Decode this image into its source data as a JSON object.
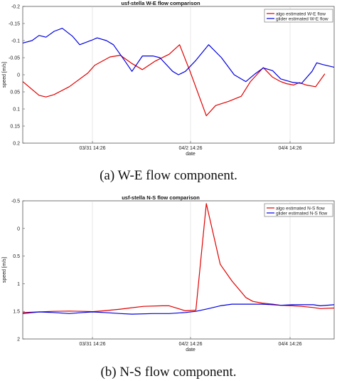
{
  "chart_data": [
    {
      "type": "line",
      "title": "usf-stella W-E flow comparison",
      "xlabel": "date",
      "ylabel": "speed [m/s]",
      "x_tick_labels": [
        "03/31 14:26",
        "04/2 14:26",
        "04/4 14:26"
      ],
      "y_tick_labels": [
        "-0.2",
        "-0.15",
        "-0.1",
        "-0.05",
        "0",
        "0.05",
        "0.1",
        "0.15",
        "0.2"
      ],
      "ylim": [
        -0.2,
        0.2
      ],
      "legend_position": "top-right",
      "grid": false,
      "series": [
        {
          "name": "algo estimated W-E flow",
          "color": "#e00000",
          "points": [
            [
              0.0,
              -0.02
            ],
            [
              0.07,
              -0.06
            ],
            [
              0.1,
              -0.065
            ],
            [
              0.135,
              -0.058
            ],
            [
              0.2,
              -0.035
            ],
            [
              0.28,
              0.005
            ],
            [
              0.31,
              0.028
            ],
            [
              0.375,
              0.052
            ],
            [
              0.42,
              0.057
            ],
            [
              0.47,
              0.033
            ],
            [
              0.515,
              0.015
            ],
            [
              0.57,
              0.04
            ],
            [
              0.63,
              0.06
            ],
            [
              0.675,
              0.088
            ],
            [
              0.72,
              0.01
            ],
            [
              0.79,
              -0.12
            ],
            [
              0.83,
              -0.09
            ],
            [
              0.885,
              -0.078
            ],
            [
              0.94,
              -0.063
            ],
            [
              0.98,
              -0.02
            ],
            [
              1.035,
              0.021
            ],
            [
              1.075,
              -0.007
            ],
            [
              1.11,
              -0.02
            ],
            [
              1.135,
              -0.026
            ],
            [
              1.165,
              -0.03
            ],
            [
              1.19,
              -0.023
            ],
            [
              1.22,
              -0.03
            ],
            [
              1.26,
              -0.035
            ],
            [
              1.3,
              0.003
            ]
          ]
        },
        {
          "name": "glider estimated W-E flow",
          "color": "#0000e0",
          "points": [
            [
              0.0,
              0.093
            ],
            [
              0.04,
              0.1
            ],
            [
              0.07,
              0.115
            ],
            [
              0.1,
              0.11
            ],
            [
              0.135,
              0.127
            ],
            [
              0.17,
              0.136
            ],
            [
              0.215,
              0.112
            ],
            [
              0.245,
              0.088
            ],
            [
              0.3,
              0.102
            ],
            [
              0.32,
              0.108
            ],
            [
              0.36,
              0.1
            ],
            [
              0.39,
              0.088
            ],
            [
              0.44,
              0.04
            ],
            [
              0.47,
              0.01
            ],
            [
              0.515,
              0.055
            ],
            [
              0.56,
              0.055
            ],
            [
              0.59,
              0.05
            ],
            [
              0.645,
              0.01
            ],
            [
              0.67,
              0.0
            ],
            [
              0.7,
              0.01
            ],
            [
              0.745,
              0.042
            ],
            [
              0.8,
              0.088
            ],
            [
              0.855,
              0.05
            ],
            [
              0.91,
              0.0
            ],
            [
              0.96,
              -0.02
            ],
            [
              1.0,
              0.003
            ],
            [
              1.035,
              0.02
            ],
            [
              1.075,
              0.012
            ],
            [
              1.11,
              -0.012
            ],
            [
              1.16,
              -0.022
            ],
            [
              1.2,
              -0.025
            ],
            [
              1.245,
              0.01
            ],
            [
              1.265,
              0.035
            ],
            [
              1.29,
              0.03
            ],
            [
              1.34,
              0.022
            ]
          ]
        }
      ]
    },
    {
      "type": "line",
      "title": "usf-stella N-S flow comparison",
      "xlabel": "date",
      "ylabel": "speed [m/s]",
      "x_tick_labels": [
        "03/31 14:26",
        "04/2 14:26",
        "04/4 14:26"
      ],
      "y_tick_labels": [
        "-0.5",
        "0",
        "0.5",
        "1",
        "1.5",
        "2"
      ],
      "ylim": [
        -0.5,
        2
      ],
      "legend_position": "top-right",
      "grid": false,
      "series": [
        {
          "name": "algo estimated N-S flow",
          "color": "#e00000",
          "points": [
            [
              0.0,
              -0.02
            ],
            [
              0.07,
              -0.01
            ],
            [
              0.13,
              0.0
            ],
            [
              0.2,
              0.005
            ],
            [
              0.26,
              0.0
            ],
            [
              0.3,
              -0.005
            ],
            [
              0.35,
              0.01
            ],
            [
              0.42,
              0.04
            ],
            [
              0.46,
              0.06
            ],
            [
              0.52,
              0.09
            ],
            [
              0.6,
              0.1
            ],
            [
              0.63,
              0.1
            ],
            [
              0.7,
              0.01
            ],
            [
              0.745,
              0.02
            ],
            [
              0.79,
              1.95
            ],
            [
              0.85,
              0.85
            ],
            [
              0.9,
              0.55
            ],
            [
              0.96,
              0.25
            ],
            [
              0.99,
              0.18
            ],
            [
              1.03,
              0.15
            ],
            [
              1.075,
              0.13
            ],
            [
              1.11,
              0.11
            ],
            [
              1.16,
              0.1
            ],
            [
              1.2,
              0.09
            ],
            [
              1.25,
              0.07
            ],
            [
              1.28,
              0.05
            ],
            [
              1.34,
              0.06
            ]
          ]
        },
        {
          "name": "glider estimated N-S flow",
          "color": "#0000e0",
          "points": [
            [
              0.0,
              -0.04
            ],
            [
              0.07,
              -0.01
            ],
            [
              0.13,
              -0.02
            ],
            [
              0.2,
              -0.04
            ],
            [
              0.26,
              -0.02
            ],
            [
              0.3,
              -0.01
            ],
            [
              0.35,
              -0.02
            ],
            [
              0.42,
              -0.04
            ],
            [
              0.47,
              -0.05
            ],
            [
              0.56,
              -0.04
            ],
            [
              0.63,
              -0.04
            ],
            [
              0.7,
              -0.02
            ],
            [
              0.745,
              0.0
            ],
            [
              0.8,
              0.05
            ],
            [
              0.85,
              0.1
            ],
            [
              0.9,
              0.13
            ],
            [
              0.96,
              0.13
            ],
            [
              0.99,
              0.13
            ],
            [
              1.03,
              0.13
            ],
            [
              1.075,
              0.12
            ],
            [
              1.11,
              0.11
            ],
            [
              1.16,
              0.12
            ],
            [
              1.2,
              0.12
            ],
            [
              1.25,
              0.12
            ],
            [
              1.28,
              0.1
            ],
            [
              1.34,
              0.12
            ]
          ]
        }
      ]
    }
  ],
  "captions": [
    "(a) W-E flow component.",
    "(b) N-S flow component."
  ]
}
